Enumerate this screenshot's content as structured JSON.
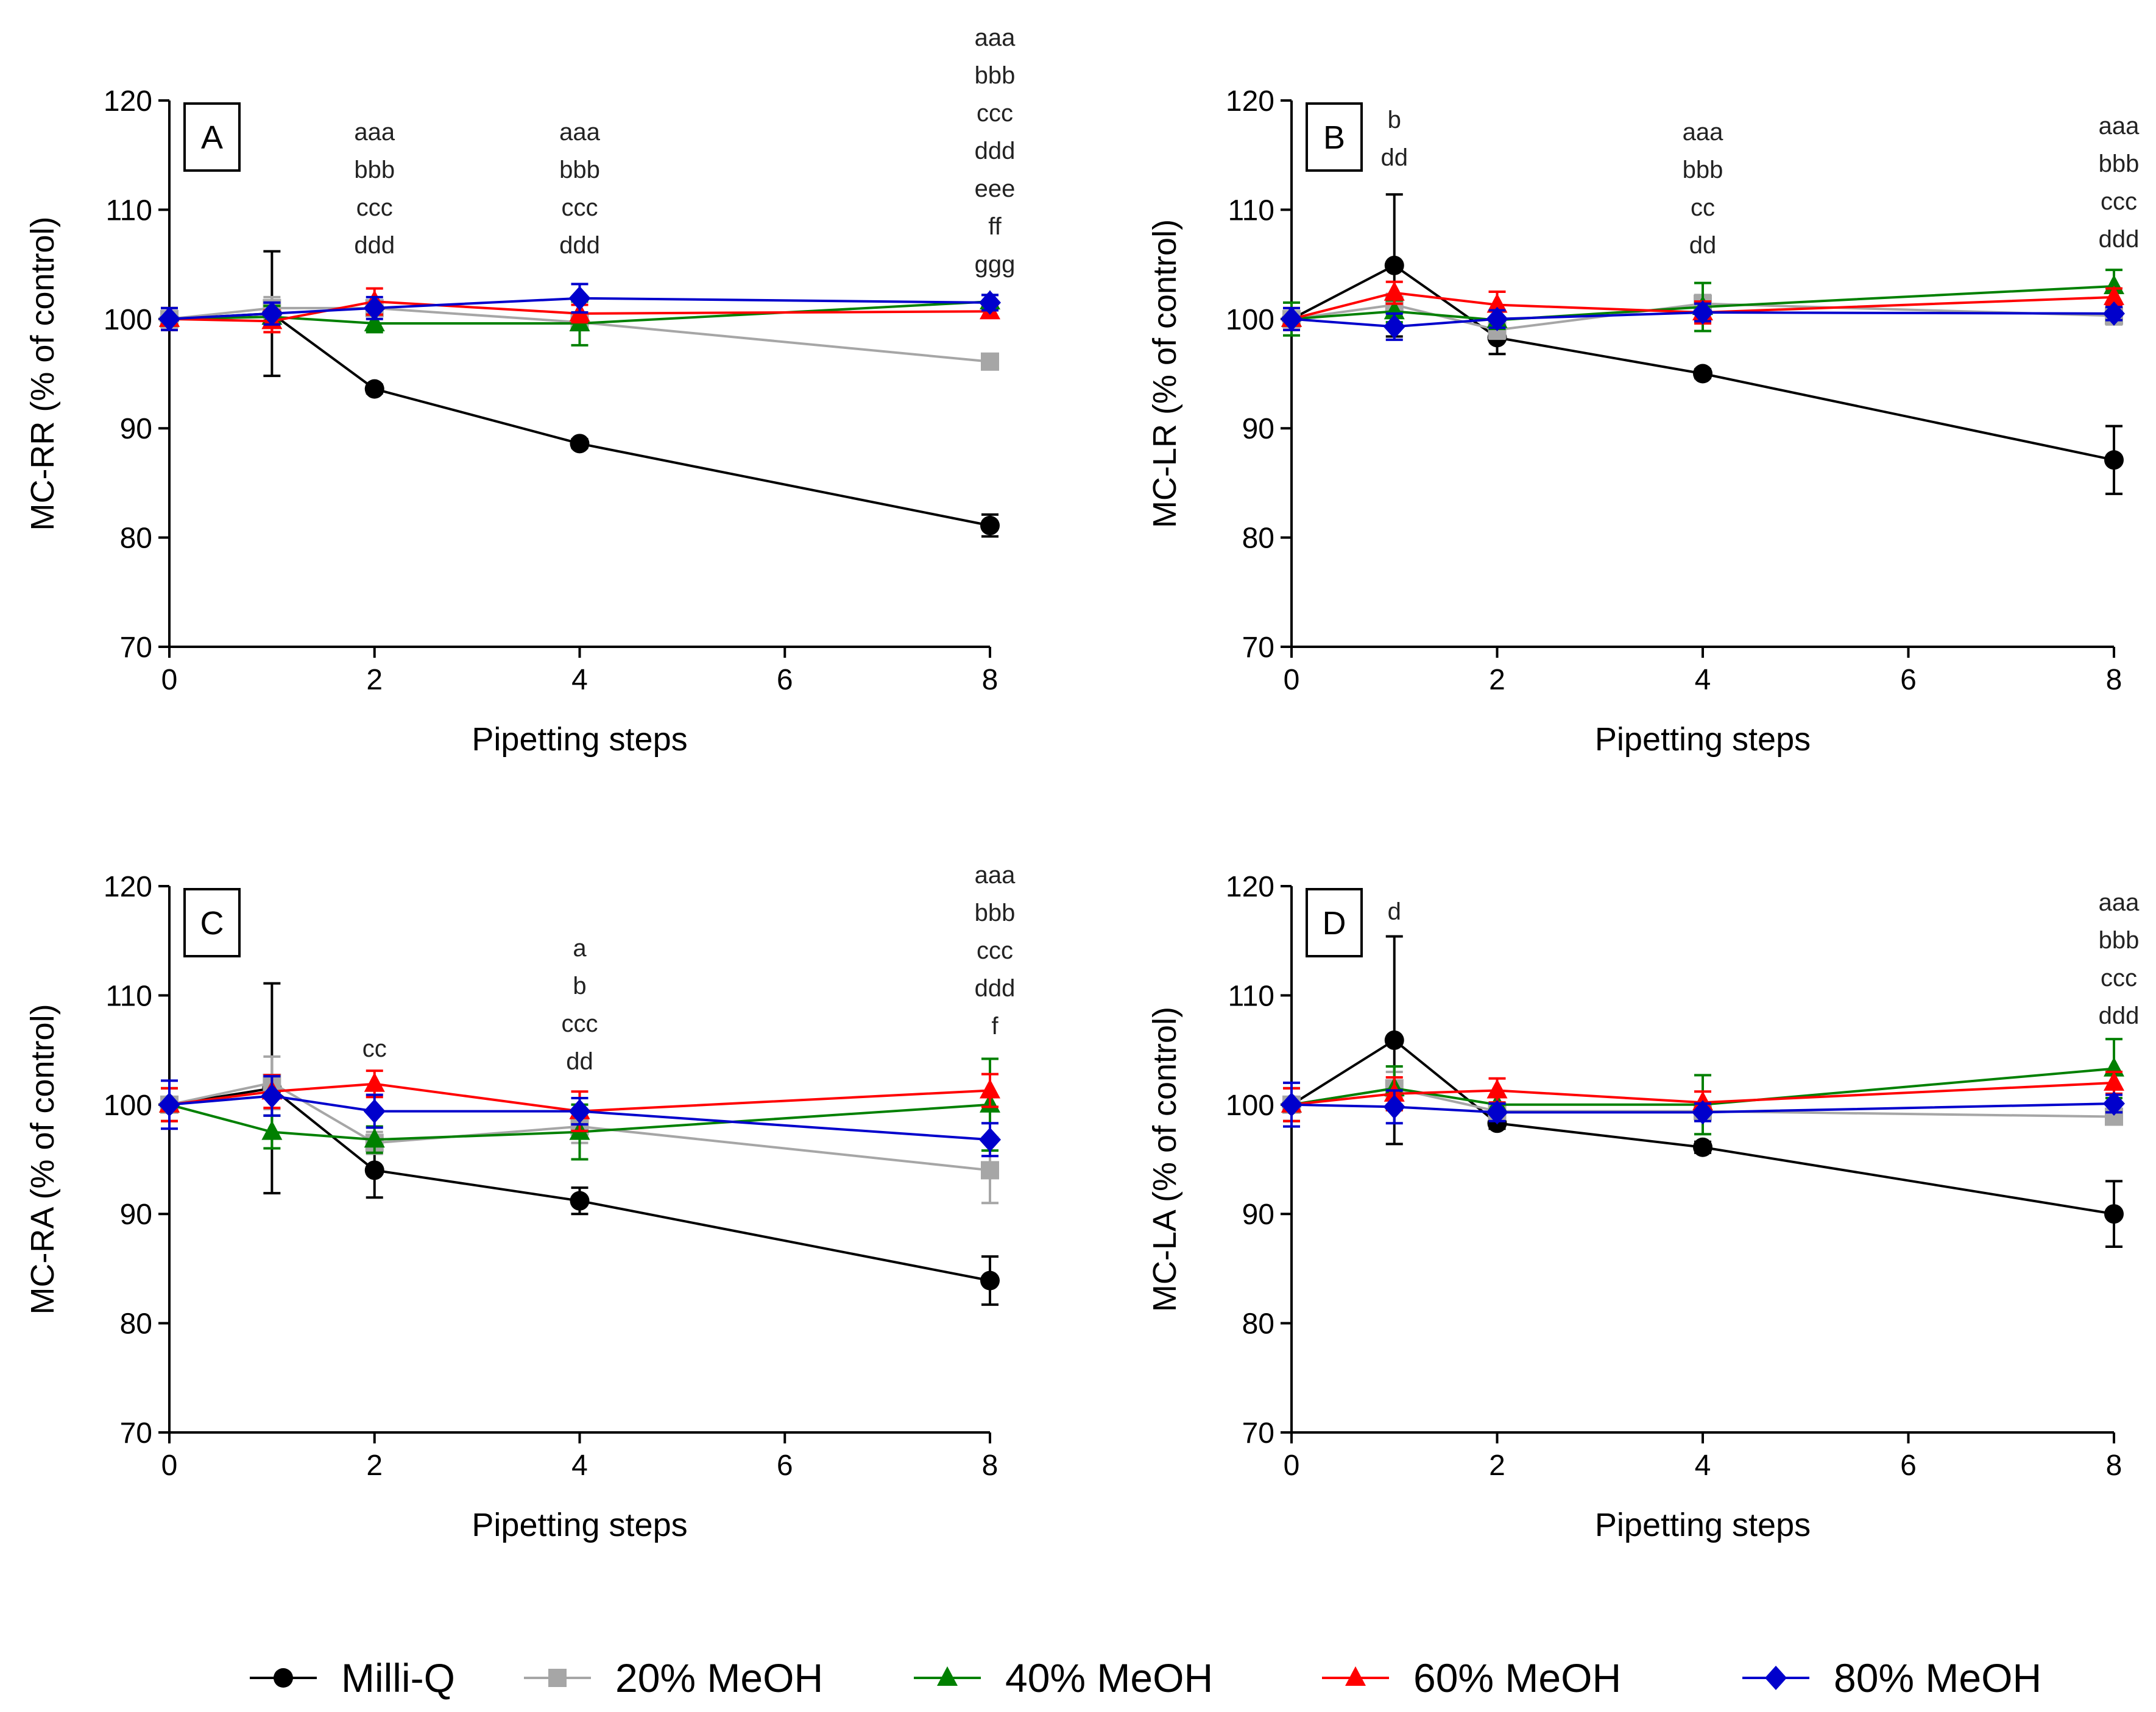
{
  "chart_data": [
    {
      "type": "line",
      "panel": "A",
      "xlabel": "Pipetting steps",
      "ylabel": "MC-RR (% of control)",
      "xlim": [
        0,
        8
      ],
      "ylim": [
        70,
        120
      ],
      "xticks": [
        0,
        2,
        4,
        6,
        8
      ],
      "yticks": [
        70,
        80,
        90,
        100,
        110,
        120
      ],
      "grid": false,
      "x": [
        0,
        1,
        2,
        4,
        8
      ],
      "series": [
        {
          "name": "Milli-Q",
          "values": [
            100,
            100.5,
            93.6,
            88.6,
            81.1
          ],
          "errors": [
            0,
            5.7,
            0.4,
            0.4,
            1.0
          ]
        },
        {
          "name": "20% MeOH",
          "values": [
            100,
            101,
            101,
            99.7,
            96.1
          ],
          "errors": [
            1.0,
            1.0,
            0.5,
            0.5,
            0.5
          ]
        },
        {
          "name": "40% MeOH",
          "values": [
            100,
            100.2,
            99.6,
            99.6,
            101.6
          ],
          "errors": [
            1.0,
            1.0,
            0.8,
            2.0,
            0.6
          ]
        },
        {
          "name": "60% MeOH",
          "values": [
            100,
            99.8,
            101.6,
            100.5,
            100.7
          ],
          "errors": [
            1.0,
            1.0,
            1.2,
            0.8,
            0.6
          ]
        },
        {
          "name": "80% MeOH",
          "values": [
            100,
            100.5,
            101,
            101.9,
            101.5
          ],
          "errors": [
            1.0,
            1.0,
            1.0,
            1.3,
            0.7
          ]
        }
      ],
      "annotations": [
        {
          "x": 2,
          "lines": [
            "aaa",
            "bbb",
            "ccc",
            "ddd"
          ]
        },
        {
          "x": 4,
          "lines": [
            "aaa",
            "bbb",
            "ccc",
            "ddd"
          ]
        },
        {
          "x": 8,
          "lines": [
            "aaa",
            "bbb",
            "ccc",
            "ddd",
            "eee",
            "ff",
            "ggg"
          ]
        }
      ]
    },
    {
      "type": "line",
      "panel": "B",
      "xlabel": "Pipetting steps",
      "ylabel": "MC-LR (% of control)",
      "xlim": [
        0,
        8
      ],
      "ylim": [
        70,
        120
      ],
      "xticks": [
        0,
        2,
        4,
        6,
        8
      ],
      "yticks": [
        70,
        80,
        90,
        100,
        110,
        120
      ],
      "grid": false,
      "x": [
        0,
        1,
        2,
        4,
        8
      ],
      "series": [
        {
          "name": "Milli-Q",
          "values": [
            100,
            104.9,
            98.3,
            95,
            87.1
          ],
          "errors": [
            0,
            6.5,
            1.5,
            0.4,
            3.1
          ]
        },
        {
          "name": "20% MeOH",
          "values": [
            100,
            101.3,
            99,
            101.4,
            100.3
          ],
          "errors": [
            1.0,
            1.0,
            0.8,
            0.8,
            0.8
          ]
        },
        {
          "name": "40% MeOH",
          "values": [
            100,
            100.7,
            99.9,
            101.1,
            103
          ],
          "errors": [
            1.5,
            1.0,
            0.8,
            2.2,
            1.5
          ]
        },
        {
          "name": "60% MeOH",
          "values": [
            100,
            102.4,
            101.3,
            100.6,
            102
          ],
          "errors": [
            1.0,
            1.0,
            1.2,
            1.0,
            0.8
          ]
        },
        {
          "name": "80% MeOH",
          "values": [
            100,
            99.3,
            100,
            100.6,
            100.5
          ],
          "errors": [
            1.0,
            1.2,
            0.8,
            0.8,
            0.6
          ]
        }
      ],
      "annotations": [
        {
          "x": 1,
          "lines": [
            "b",
            "dd"
          ]
        },
        {
          "x": 4,
          "lines": [
            "aaa",
            "bbb",
            "cc",
            "dd"
          ]
        },
        {
          "x": 8,
          "lines": [
            "aaa",
            "bbb",
            "ccc",
            "ddd"
          ]
        }
      ]
    },
    {
      "type": "line",
      "panel": "C",
      "xlabel": "Pipetting steps",
      "ylabel": "MC-RA (% of control)",
      "xlim": [
        0,
        8
      ],
      "ylim": [
        70,
        120
      ],
      "xticks": [
        0,
        2,
        4,
        6,
        8
      ],
      "yticks": [
        70,
        80,
        90,
        100,
        110,
        120
      ],
      "grid": false,
      "x": [
        0,
        1,
        2,
        4,
        8
      ],
      "series": [
        {
          "name": "Milli-Q",
          "values": [
            100,
            101.5,
            94,
            91.2,
            83.9
          ],
          "errors": [
            0,
            9.6,
            2.5,
            1.2,
            2.2
          ]
        },
        {
          "name": "20% MeOH",
          "values": [
            100,
            102,
            96.5,
            98,
            94
          ],
          "errors": [
            1.5,
            2.4,
            1.0,
            1.5,
            3.0
          ]
        },
        {
          "name": "40% MeOH",
          "values": [
            100,
            97.5,
            96.8,
            97.5,
            100
          ],
          "errors": [
            1.5,
            1.5,
            1.2,
            2.5,
            4.2
          ]
        },
        {
          "name": "60% MeOH",
          "values": [
            100,
            101.2,
            101.9,
            99.4,
            101.3
          ],
          "errors": [
            1.5,
            1.5,
            1.2,
            1.8,
            1.5
          ]
        },
        {
          "name": "80% MeOH",
          "values": [
            100,
            100.8,
            99.4,
            99.4,
            96.8
          ],
          "errors": [
            2.2,
            1.8,
            1.5,
            1.2,
            1.5
          ]
        }
      ],
      "annotations": [
        {
          "x": 2,
          "lines": [
            "cc"
          ]
        },
        {
          "x": 4,
          "lines": [
            "a",
            "b",
            "ccc",
            "dd"
          ]
        },
        {
          "x": 8,
          "lines": [
            "aaa",
            "bbb",
            "ccc",
            "ddd",
            "f"
          ]
        }
      ]
    },
    {
      "type": "line",
      "panel": "D",
      "xlabel": "Pipetting steps",
      "ylabel": "MC-LA (% of control)",
      "xlim": [
        0,
        8
      ],
      "ylim": [
        70,
        120
      ],
      "xticks": [
        0,
        2,
        4,
        6,
        8
      ],
      "yticks": [
        70,
        80,
        90,
        100,
        110,
        120
      ],
      "grid": false,
      "x": [
        0,
        1,
        2,
        4,
        8
      ],
      "series": [
        {
          "name": "Milli-Q",
          "values": [
            100,
            105.9,
            98.3,
            96.1,
            90
          ],
          "errors": [
            0,
            9.5,
            0.5,
            0.5,
            3.0
          ]
        },
        {
          "name": "20% MeOH",
          "values": [
            100,
            101.5,
            99.4,
            99.4,
            98.9
          ],
          "errors": [
            1.5,
            1.5,
            0.8,
            0.8,
            0.6
          ]
        },
        {
          "name": "40% MeOH",
          "values": [
            100,
            101.5,
            100,
            100,
            103.3
          ],
          "errors": [
            1.5,
            2.0,
            0.8,
            2.7,
            2.7
          ]
        },
        {
          "name": "60% MeOH",
          "values": [
            100,
            101,
            101.3,
            100.2,
            102
          ],
          "errors": [
            1.5,
            1.5,
            1.1,
            1.0,
            1.0
          ]
        },
        {
          "name": "80% MeOH",
          "values": [
            100,
            99.8,
            99.3,
            99.3,
            100.1
          ],
          "errors": [
            2.0,
            1.5,
            0.8,
            0.8,
            0.8
          ]
        }
      ],
      "annotations": [
        {
          "x": 1,
          "lines": [
            "d"
          ]
        },
        {
          "x": 8,
          "lines": [
            "aaa",
            "bbb",
            "ccc",
            "ddd"
          ]
        }
      ]
    }
  ],
  "series_styles": [
    {
      "name": "Milli-Q",
      "color": "#000000",
      "marker": "circle"
    },
    {
      "name": "20% MeOH",
      "color": "#a6a6a6",
      "marker": "square"
    },
    {
      "name": "40% MeOH",
      "color": "#008000",
      "marker": "triangle"
    },
    {
      "name": "60% MeOH",
      "color": "#ff0000",
      "marker": "triangle"
    },
    {
      "name": "80% MeOH",
      "color": "#0000cc",
      "marker": "diamond"
    }
  ],
  "legend": {
    "placement": "bottom",
    "entries": [
      "Milli-Q",
      "20% MeOH",
      "40% MeOH",
      "60% MeOH",
      "80% MeOH"
    ]
  }
}
